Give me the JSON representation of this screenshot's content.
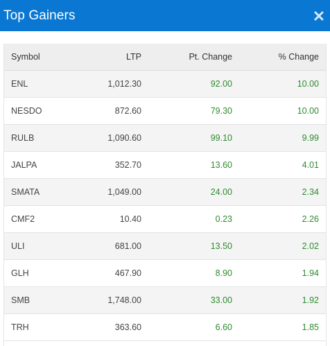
{
  "header": {
    "title": "Top Gainers"
  },
  "table": {
    "columns": [
      "Symbol",
      "LTP",
      "Pt. Change",
      "% Change"
    ],
    "rows": [
      {
        "symbol": "ENL",
        "ltp": "1,012.30",
        "pt_change": "92.00",
        "pct_change": "10.00"
      },
      {
        "symbol": "NESDO",
        "ltp": "872.60",
        "pt_change": "79.30",
        "pct_change": "10.00"
      },
      {
        "symbol": "RULB",
        "ltp": "1,090.60",
        "pt_change": "99.10",
        "pct_change": "9.99"
      },
      {
        "symbol": "JALPA",
        "ltp": "352.70",
        "pt_change": "13.60",
        "pct_change": "4.01"
      },
      {
        "symbol": "SMATA",
        "ltp": "1,049.00",
        "pt_change": "24.00",
        "pct_change": "2.34"
      },
      {
        "symbol": "CMF2",
        "ltp": "10.40",
        "pt_change": "0.23",
        "pct_change": "2.26"
      },
      {
        "symbol": "ULI",
        "ltp": "681.00",
        "pt_change": "13.50",
        "pct_change": "2.02"
      },
      {
        "symbol": "GLH",
        "ltp": "467.90",
        "pt_change": "8.90",
        "pct_change": "1.94"
      },
      {
        "symbol": "SMB",
        "ltp": "1,748.00",
        "pt_change": "33.00",
        "pct_change": "1.92"
      },
      {
        "symbol": "TRH",
        "ltp": "363.60",
        "pt_change": "6.60",
        "pct_change": "1.85"
      }
    ]
  },
  "colors": {
    "header_bg": "#0a78d2",
    "positive": "#2e8b2e"
  },
  "icons": {
    "close": "close-icon"
  }
}
